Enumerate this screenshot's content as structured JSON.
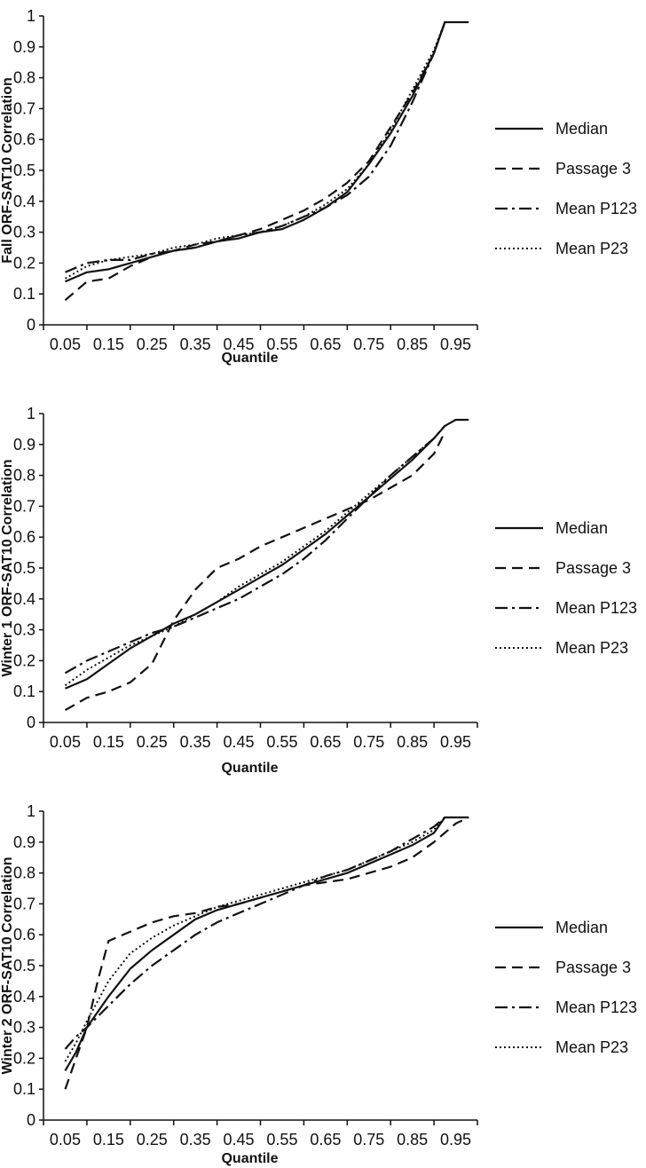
{
  "chart_data": [
    {
      "type": "line",
      "ylabel": "Fall ORF-SAT10 Correlation",
      "xlabel": "Quantile",
      "x_ticks": [
        "0.05",
        "0.15",
        "0.25",
        "0.35",
        "0.45",
        "0.55",
        "0.65",
        "0.75",
        "0.85",
        "0.95"
      ],
      "y_ticks": [
        "0",
        "0.1",
        "0.2",
        "0.3",
        "0.4",
        "0.5",
        "0.6",
        "0.7",
        "0.8",
        "0.9",
        "1"
      ],
      "xlim": [
        0,
        1.0
      ],
      "ylim": [
        0,
        1
      ],
      "legend_position": "right",
      "series": [
        {
          "name": "Median",
          "style": "solid",
          "x": [
            0.05,
            0.1,
            0.15,
            0.2,
            0.25,
            0.3,
            0.35,
            0.4,
            0.45,
            0.5,
            0.55,
            0.6,
            0.65,
            0.7,
            0.75,
            0.8,
            0.85,
            0.9,
            0.925,
            0.95,
            0.98
          ],
          "y": [
            0.14,
            0.17,
            0.18,
            0.2,
            0.22,
            0.24,
            0.25,
            0.27,
            0.28,
            0.3,
            0.31,
            0.34,
            0.38,
            0.43,
            0.52,
            0.62,
            0.74,
            0.88,
            0.98,
            0.98,
            0.98
          ]
        },
        {
          "name": "Passage 3",
          "style": "dashed",
          "x": [
            0.05,
            0.1,
            0.15,
            0.2,
            0.25,
            0.3,
            0.35,
            0.4,
            0.45,
            0.5,
            0.55,
            0.6,
            0.65,
            0.7,
            0.75,
            0.8,
            0.85,
            0.9,
            0.925
          ],
          "y": [
            0.08,
            0.14,
            0.15,
            0.19,
            0.22,
            0.24,
            0.26,
            0.27,
            0.29,
            0.31,
            0.34,
            0.37,
            0.41,
            0.46,
            0.53,
            0.64,
            0.75,
            0.88,
            0.98
          ]
        },
        {
          "name": "Mean P123",
          "style": "dashdot",
          "x": [
            0.05,
            0.1,
            0.15,
            0.2,
            0.25,
            0.3,
            0.35,
            0.4,
            0.45,
            0.5,
            0.55,
            0.6,
            0.65,
            0.7,
            0.75,
            0.8,
            0.85,
            0.9,
            0.925
          ],
          "y": [
            0.17,
            0.2,
            0.21,
            0.21,
            0.23,
            0.24,
            0.25,
            0.27,
            0.29,
            0.3,
            0.32,
            0.35,
            0.38,
            0.42,
            0.48,
            0.58,
            0.72,
            0.88,
            0.98
          ]
        },
        {
          "name": "Mean P23",
          "style": "dotted",
          "x": [
            0.05,
            0.1,
            0.15,
            0.2,
            0.25,
            0.3,
            0.35,
            0.4,
            0.45,
            0.5,
            0.55,
            0.6,
            0.65,
            0.7,
            0.75,
            0.8,
            0.85,
            0.9,
            0.925
          ],
          "y": [
            0.15,
            0.19,
            0.21,
            0.22,
            0.23,
            0.25,
            0.26,
            0.28,
            0.29,
            0.3,
            0.32,
            0.35,
            0.39,
            0.44,
            0.52,
            0.63,
            0.76,
            0.89,
            0.98
          ]
        }
      ]
    },
    {
      "type": "line",
      "ylabel": "Winter 1 ORF-SAT10 Correlation",
      "xlabel": "Quantile",
      "x_ticks": [
        "0.05",
        "0.15",
        "0.25",
        "0.35",
        "0.45",
        "0.55",
        "0.65",
        "0.75",
        "0.85",
        "0.95"
      ],
      "y_ticks": [
        "0",
        "0.1",
        "0.2",
        "0.3",
        "0.4",
        "0.5",
        "0.6",
        "0.7",
        "0.8",
        "0.9",
        "1"
      ],
      "xlim": [
        0,
        1.0
      ],
      "ylim": [
        0,
        1
      ],
      "legend_position": "right",
      "series": [
        {
          "name": "Median",
          "style": "solid",
          "x": [
            0.05,
            0.1,
            0.15,
            0.2,
            0.25,
            0.3,
            0.35,
            0.4,
            0.45,
            0.5,
            0.55,
            0.6,
            0.65,
            0.7,
            0.75,
            0.8,
            0.85,
            0.9,
            0.925,
            0.95,
            0.98
          ],
          "y": [
            0.11,
            0.14,
            0.19,
            0.24,
            0.28,
            0.32,
            0.35,
            0.39,
            0.43,
            0.47,
            0.51,
            0.56,
            0.61,
            0.67,
            0.73,
            0.79,
            0.85,
            0.92,
            0.96,
            0.98,
            0.98
          ]
        },
        {
          "name": "Passage 3",
          "style": "dashed",
          "x": [
            0.05,
            0.1,
            0.15,
            0.2,
            0.25,
            0.3,
            0.35,
            0.4,
            0.45,
            0.5,
            0.55,
            0.6,
            0.65,
            0.7,
            0.75,
            0.8,
            0.85,
            0.9,
            0.925
          ],
          "y": [
            0.04,
            0.08,
            0.1,
            0.13,
            0.19,
            0.33,
            0.43,
            0.5,
            0.53,
            0.57,
            0.6,
            0.63,
            0.66,
            0.69,
            0.72,
            0.76,
            0.8,
            0.87,
            0.94
          ]
        },
        {
          "name": "Mean P123",
          "style": "dashdot",
          "x": [
            0.05,
            0.1,
            0.15,
            0.2,
            0.25,
            0.3,
            0.35,
            0.4,
            0.45,
            0.5,
            0.55,
            0.6,
            0.65,
            0.7,
            0.75,
            0.8,
            0.85,
            0.9,
            0.925
          ],
          "y": [
            0.16,
            0.2,
            0.23,
            0.26,
            0.29,
            0.31,
            0.34,
            0.37,
            0.4,
            0.44,
            0.48,
            0.53,
            0.59,
            0.66,
            0.73,
            0.8,
            0.86,
            0.92,
            0.96
          ]
        },
        {
          "name": "Mean P23",
          "style": "dotted",
          "x": [
            0.05,
            0.1,
            0.15,
            0.2,
            0.25,
            0.3,
            0.35,
            0.4,
            0.45,
            0.5,
            0.55,
            0.6,
            0.65,
            0.7,
            0.75,
            0.8,
            0.85,
            0.9,
            0.925
          ],
          "y": [
            0.12,
            0.17,
            0.21,
            0.25,
            0.28,
            0.31,
            0.35,
            0.39,
            0.44,
            0.48,
            0.52,
            0.57,
            0.62,
            0.68,
            0.74,
            0.8,
            0.86,
            0.92,
            0.96
          ]
        }
      ]
    },
    {
      "type": "line",
      "ylabel": "Winter 2 ORF-SAT10 Correlation",
      "xlabel": "Quantile",
      "x_ticks": [
        "0.05",
        "0.15",
        "0.25",
        "0.35",
        "0.45",
        "0.55",
        "0.65",
        "0.75",
        "0.85",
        "0.95"
      ],
      "y_ticks": [
        "0",
        "0.1",
        "0.2",
        "0.3",
        "0.4",
        "0.5",
        "0.6",
        "0.7",
        "0.8",
        "0.9",
        "1"
      ],
      "xlim": [
        0,
        1.0
      ],
      "ylim": [
        0,
        1
      ],
      "legend_position": "right",
      "series": [
        {
          "name": "Median",
          "style": "solid",
          "x": [
            0.05,
            0.075,
            0.1,
            0.15,
            0.2,
            0.25,
            0.3,
            0.35,
            0.4,
            0.45,
            0.5,
            0.55,
            0.6,
            0.65,
            0.7,
            0.75,
            0.8,
            0.85,
            0.9,
            0.925,
            0.95,
            0.98
          ],
          "y": [
            0.16,
            0.22,
            0.3,
            0.4,
            0.49,
            0.55,
            0.6,
            0.65,
            0.68,
            0.7,
            0.72,
            0.74,
            0.76,
            0.78,
            0.8,
            0.83,
            0.86,
            0.89,
            0.93,
            0.98,
            0.98,
            0.98
          ]
        },
        {
          "name": "Passage 3",
          "style": "dashed",
          "x": [
            0.05,
            0.075,
            0.1,
            0.125,
            0.15,
            0.2,
            0.25,
            0.3,
            0.35,
            0.4,
            0.45,
            0.5,
            0.55,
            0.6,
            0.65,
            0.7,
            0.75,
            0.8,
            0.85,
            0.9,
            0.95,
            0.98
          ],
          "y": [
            0.1,
            0.2,
            0.3,
            0.45,
            0.58,
            0.61,
            0.64,
            0.66,
            0.67,
            0.69,
            0.7,
            0.72,
            0.74,
            0.76,
            0.77,
            0.78,
            0.8,
            0.82,
            0.85,
            0.9,
            0.96,
            0.98
          ]
        },
        {
          "name": "Mean P123",
          "style": "dashdot",
          "x": [
            0.05,
            0.075,
            0.1,
            0.15,
            0.2,
            0.25,
            0.3,
            0.35,
            0.4,
            0.45,
            0.5,
            0.55,
            0.6,
            0.65,
            0.7,
            0.75,
            0.8,
            0.85,
            0.9,
            0.925
          ],
          "y": [
            0.23,
            0.27,
            0.3,
            0.37,
            0.44,
            0.5,
            0.55,
            0.6,
            0.64,
            0.67,
            0.7,
            0.73,
            0.76,
            0.79,
            0.81,
            0.84,
            0.87,
            0.91,
            0.95,
            0.98
          ]
        },
        {
          "name": "Mean P23",
          "style": "dotted",
          "x": [
            0.05,
            0.075,
            0.1,
            0.15,
            0.2,
            0.25,
            0.3,
            0.35,
            0.4,
            0.45,
            0.5,
            0.55,
            0.6,
            0.65,
            0.7,
            0.75,
            0.8,
            0.85,
            0.9,
            0.925
          ],
          "y": [
            0.19,
            0.25,
            0.32,
            0.45,
            0.54,
            0.59,
            0.63,
            0.66,
            0.69,
            0.71,
            0.73,
            0.75,
            0.77,
            0.79,
            0.81,
            0.84,
            0.87,
            0.9,
            0.94,
            0.98
          ]
        }
      ]
    }
  ]
}
